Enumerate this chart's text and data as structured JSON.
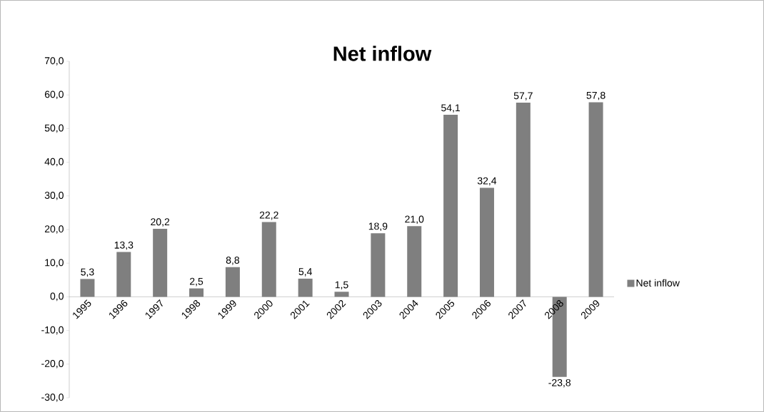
{
  "chart_data": {
    "type": "bar",
    "title": "Net inflow",
    "categories": [
      "1995",
      "1996",
      "1997",
      "1998",
      "1999",
      "2000",
      "2001",
      "2002",
      "2003",
      "2004",
      "2005",
      "2006",
      "2007",
      "2008",
      "2009"
    ],
    "series": [
      {
        "name": "Net inflow",
        "color": "#7f7f7f",
        "values": [
          5.3,
          13.3,
          20.2,
          2.5,
          8.8,
          22.2,
          5.4,
          1.5,
          18.9,
          21.0,
          54.1,
          32.4,
          57.7,
          -23.8,
          57.8
        ],
        "value_labels": [
          "5,3",
          "13,3",
          "20,2",
          "2,5",
          "8,8",
          "22,2",
          "5,4",
          "1,5",
          "18,9",
          "21,0",
          "54,1",
          "32,4",
          "57,7",
          "-23,8",
          "57,8"
        ]
      }
    ],
    "ylim": [
      -30,
      70
    ],
    "yticks": [
      {
        "value": -30,
        "label": "-30,0"
      },
      {
        "value": -20,
        "label": "-20,0"
      },
      {
        "value": -10,
        "label": "-10,0"
      },
      {
        "value": 0,
        "label": "0,0"
      },
      {
        "value": 10,
        "label": "10,0"
      },
      {
        "value": 20,
        "label": "20,0"
      },
      {
        "value": 30,
        "label": "30,0"
      },
      {
        "value": 40,
        "label": "40,0"
      },
      {
        "value": 50,
        "label": "50,0"
      },
      {
        "value": 60,
        "label": "60,0"
      },
      {
        "value": 70,
        "label": "70,0"
      }
    ],
    "legend": "right"
  }
}
